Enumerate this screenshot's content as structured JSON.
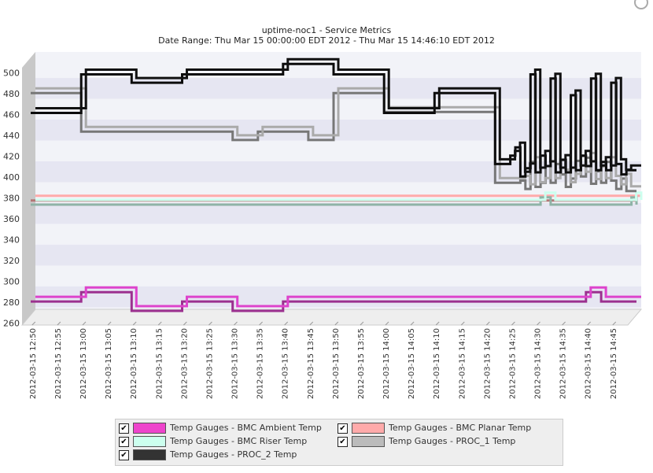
{
  "chart_data": {
    "type": "line",
    "title": "uptime-noc1 - Service Metrics",
    "subtitle": "Date Range: Thu Mar 15 00:00:00 EDT 2012 - Thu Mar 15 14:46:10 EDT 2012",
    "step": true,
    "ylim": [
      258,
      505
    ],
    "yticks": [
      260,
      280,
      300,
      320,
      340,
      360,
      380,
      400,
      420,
      440,
      460,
      480,
      500
    ],
    "xlim": [
      "2012-03-15 12:48",
      "2012-03-15 14:48"
    ],
    "xtick_labels": [
      "2012-03-15 12:50",
      "2012-03-15 12:55",
      "2012-03-15 13:00",
      "2012-03-15 13:05",
      "2012-03-15 13:10",
      "2012-03-15 13:15",
      "2012-03-15 13:20",
      "2012-03-15 13:25",
      "2012-03-15 13:30",
      "2012-03-15 13:35",
      "2012-03-15 13:40",
      "2012-03-15 13:45",
      "2012-03-15 13:50",
      "2012-03-15 13:55",
      "2012-03-15 14:00",
      "2012-03-15 14:05",
      "2012-03-15 14:10",
      "2012-03-15 14:15",
      "2012-03-15 14:20",
      "2012-03-15 14:25",
      "2012-03-15 14:30",
      "2012-03-15 14:35",
      "2012-03-15 14:40",
      "2012-03-15 14:45"
    ],
    "grid": "alternating horizontal bands",
    "legend_position": "bottom",
    "series": [
      {
        "name": "Temp Gauges - BMC Ambient Temp",
        "color": "#dd44cc",
        "x": [
          "2012-03-15 12:48",
          "2012-03-15 12:58",
          "2012-03-15 13:05",
          "2012-03-15 13:08",
          "2012-03-15 13:13",
          "2012-03-15 13:18",
          "2012-03-15 13:23",
          "2012-03-15 13:28",
          "2012-03-15 13:33",
          "2012-03-15 13:38",
          "2012-03-15 13:43",
          "2012-03-15 13:48",
          "2012-03-15 13:53",
          "2012-03-15 13:58",
          "2012-03-15 14:03",
          "2012-03-15 14:08",
          "2012-03-15 14:13",
          "2012-03-15 14:18",
          "2012-03-15 14:23",
          "2012-03-15 14:28",
          "2012-03-15 14:33",
          "2012-03-15 14:38",
          "2012-03-15 14:39",
          "2012-03-15 14:41",
          "2012-03-15 14:48"
        ],
        "y": [
          270,
          279,
          279,
          261,
          261,
          270,
          270,
          261,
          261,
          270,
          270,
          270,
          270,
          270,
          270,
          270,
          270,
          270,
          270,
          270,
          270,
          279,
          279,
          270,
          270
        ]
      },
      {
        "name": "Temp Gauges - BMC Planar Temp",
        "color": "#ffaaaa",
        "x": [
          "2012-03-15 12:48",
          "2012-03-15 14:48"
        ],
        "y": [
          367,
          367
        ]
      },
      {
        "name": "Temp Gauges - BMC Riser Temp",
        "color": "#ccffee",
        "x": [
          "2012-03-15 12:48",
          "2012-03-15 14:28",
          "2012-03-15 14:29",
          "2012-03-15 14:31",
          "2012-03-15 14:46",
          "2012-03-15 14:47",
          "2012-03-15 14:48"
        ],
        "y": [
          363,
          363,
          370,
          363,
          363,
          370,
          363
        ]
      },
      {
        "name": "Temp Gauges - PROC_1 Temp",
        "color": "#aaaaaa",
        "x": [
          "2012-03-15 12:48",
          "2012-03-15 12:58",
          "2012-03-15 13:28",
          "2012-03-15 13:33",
          "2012-03-15 13:43",
          "2012-03-15 13:48",
          "2012-03-15 13:58",
          "2012-03-15 14:08",
          "2012-03-15 14:20",
          "2012-03-15 14:25",
          "2012-03-15 14:26",
          "2012-03-15 14:27",
          "2012-03-15 14:28",
          "2012-03-15 14:29",
          "2012-03-15 14:30",
          "2012-03-15 14:31",
          "2012-03-15 14:32",
          "2012-03-15 14:33",
          "2012-03-15 14:34",
          "2012-03-15 14:35",
          "2012-03-15 14:36",
          "2012-03-15 14:37",
          "2012-03-15 14:38",
          "2012-03-15 14:39",
          "2012-03-15 14:40",
          "2012-03-15 14:41",
          "2012-03-15 14:42",
          "2012-03-15 14:43",
          "2012-03-15 14:44",
          "2012-03-15 14:45",
          "2012-03-15 14:46",
          "2012-03-15 14:48"
        ],
        "y": [
          470,
          433,
          425,
          433,
          425,
          470,
          452,
          452,
          384,
          386,
          378,
          404,
          380,
          384,
          400,
          384,
          402,
          392,
          380,
          388,
          405,
          390,
          408,
          383,
          395,
          384,
          404,
          386,
          378,
          388,
          376,
          376
        ]
      },
      {
        "name": "Temp Gauges - PROC_2 Temp",
        "color": "#111111",
        "x": [
          "2012-03-15 12:48",
          "2012-03-15 12:58",
          "2012-03-15 13:08",
          "2012-03-15 13:18",
          "2012-03-15 13:28",
          "2012-03-15 13:38",
          "2012-03-15 13:48",
          "2012-03-15 13:58",
          "2012-03-15 14:08",
          "2012-03-15 14:20",
          "2012-03-15 14:23",
          "2012-03-15 14:24",
          "2012-03-15 14:25",
          "2012-03-15 14:26",
          "2012-03-15 14:27",
          "2012-03-15 14:28",
          "2012-03-15 14:29",
          "2012-03-15 14:30",
          "2012-03-15 14:31",
          "2012-03-15 14:32",
          "2012-03-15 14:33",
          "2012-03-15 14:34",
          "2012-03-15 14:35",
          "2012-03-15 14:36",
          "2012-03-15 14:37",
          "2012-03-15 14:38",
          "2012-03-15 14:39",
          "2012-03-15 14:40",
          "2012-03-15 14:41",
          "2012-03-15 14:42",
          "2012-03-15 14:43",
          "2012-03-15 14:44",
          "2012-03-15 14:45",
          "2012-03-15 14:46",
          "2012-03-15 14:48"
        ],
        "y": [
          451,
          488,
          480,
          488,
          488,
          498,
          488,
          451,
          470,
          402,
          410,
          418,
          390,
          398,
          488,
          394,
          410,
          400,
          484,
          394,
          406,
          394,
          468,
          396,
          410,
          400,
          484,
          396,
          404,
          396,
          480,
          402,
          392,
          396,
          396
        ]
      }
    ]
  },
  "legend": {
    "items": [
      {
        "label": "Temp Gauges - BMC Ambient Temp",
        "color": "#ee44cc",
        "checked": "✔"
      },
      {
        "label": "Temp Gauges - BMC Planar Temp",
        "color": "#ffaaaa",
        "checked": "✔"
      },
      {
        "label": "Temp Gauges - BMC Riser Temp",
        "color": "#ccffee",
        "checked": "✔"
      },
      {
        "label": "Temp Gauges - PROC_1 Temp",
        "color": "#bbbbbb",
        "checked": "✔"
      },
      {
        "label": "Temp Gauges - PROC_2 Temp",
        "color": "#333333",
        "checked": "✔"
      }
    ]
  }
}
